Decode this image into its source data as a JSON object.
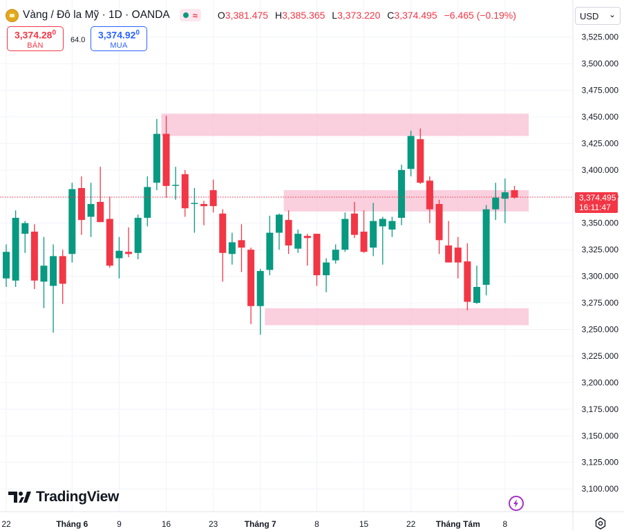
{
  "header": {
    "symbol_title": "Vàng / Đô la Mỹ · 1D · OANDA",
    "wave_icon_text": "≈",
    "ohlc": {
      "o_label": "O",
      "o_value": "3,381.475",
      "h_label": "H",
      "h_value": "3,385.365",
      "l_label": "L",
      "l_value": "3,373.220",
      "c_label": "C",
      "c_value": "3,374.495",
      "change": "−6.465 (−0.19%)"
    }
  },
  "trade": {
    "sell_price_main": "3,374.28",
    "sell_price_sup": "0",
    "sell_label": "BÁN",
    "spread": "64.0",
    "buy_price_main": "3,374.92",
    "buy_price_sup": "0",
    "buy_label": "MUA"
  },
  "currency": {
    "selected": "USD",
    "chevron": "⌄"
  },
  "last_price": {
    "price": "3,374.495",
    "countdown": "16:11:47"
  },
  "branding": {
    "logo_text": "TradingView"
  },
  "colors": {
    "up": "#089981",
    "down": "#f23645",
    "zone": "#f8bbd0",
    "grid": "#f0f3fa",
    "axis_text": "#131722"
  },
  "chart_data": {
    "type": "candlestick",
    "ylim": [
      3080,
      3540
    ],
    "y_ticks": [
      3100,
      3125,
      3150,
      3175,
      3200,
      3225,
      3250,
      3275,
      3300,
      3325,
      3350,
      3375,
      3400,
      3425,
      3450,
      3475,
      3500,
      3525
    ],
    "y_tick_labels": [
      "3,100.000",
      "3,125.000",
      "3,150.000",
      "3,175.000",
      "3,200.000",
      "3,225.000",
      "3,250.000",
      "3,275.000",
      "3,300.000",
      "3,325.000",
      "3,350.000",
      "3,375.000",
      "3,400.000",
      "3,425.000",
      "3,450.000",
      "3,475.000",
      "3,500.000",
      "3,525.000"
    ],
    "x_labels": [
      {
        "index": 0,
        "label": "22"
      },
      {
        "index": 7,
        "label": "Tháng 6"
      },
      {
        "index": 12,
        "label": "9"
      },
      {
        "index": 17,
        "label": "16"
      },
      {
        "index": 22,
        "label": "23"
      },
      {
        "index": 27,
        "label": "Tháng 7"
      },
      {
        "index": 33,
        "label": "8"
      },
      {
        "index": 38,
        "label": "15"
      },
      {
        "index": 43,
        "label": "22"
      },
      {
        "index": 48,
        "label": "Tháng Tám"
      },
      {
        "index": 53,
        "label": "8"
      }
    ],
    "candles": [
      {
        "o": 3298,
        "h": 3330,
        "l": 3290,
        "c": 3323
      },
      {
        "o": 3296,
        "h": 3362,
        "l": 3290,
        "c": 3355
      },
      {
        "o": 3340,
        "h": 3352,
        "l": 3322,
        "c": 3350
      },
      {
        "o": 3342,
        "h": 3349,
        "l": 3288,
        "c": 3296
      },
      {
        "o": 3295,
        "h": 3337,
        "l": 3270,
        "c": 3310
      },
      {
        "o": 3291,
        "h": 3330,
        "l": 3247,
        "c": 3319
      },
      {
        "o": 3319,
        "h": 3325,
        "l": 3274,
        "c": 3293
      },
      {
        "o": 3321,
        "h": 3388,
        "l": 3313,
        "c": 3382
      },
      {
        "o": 3383,
        "h": 3394,
        "l": 3339,
        "c": 3353
      },
      {
        "o": 3356,
        "h": 3388,
        "l": 3337,
        "c": 3368
      },
      {
        "o": 3370,
        "h": 3403,
        "l": 3351,
        "c": 3351
      },
      {
        "o": 3354,
        "h": 3375,
        "l": 3308,
        "c": 3310
      },
      {
        "o": 3317,
        "h": 3337,
        "l": 3298,
        "c": 3324
      },
      {
        "o": 3323,
        "h": 3346,
        "l": 3318,
        "c": 3321
      },
      {
        "o": 3322,
        "h": 3358,
        "l": 3316,
        "c": 3355
      },
      {
        "o": 3355,
        "h": 3394,
        "l": 3347,
        "c": 3384
      },
      {
        "o": 3388,
        "h": 3448,
        "l": 3381,
        "c": 3434
      },
      {
        "o": 3434,
        "h": 3451,
        "l": 3374,
        "c": 3385
      },
      {
        "o": 3386,
        "h": 3403,
        "l": 3372,
        "c": 3386
      },
      {
        "o": 3396,
        "h": 3400,
        "l": 3356,
        "c": 3364
      },
      {
        "o": 3368,
        "h": 3383,
        "l": 3341,
        "c": 3369
      },
      {
        "o": 3368,
        "h": 3371,
        "l": 3348,
        "c": 3366
      },
      {
        "o": 3381,
        "h": 3391,
        "l": 3360,
        "c": 3366
      },
      {
        "o": 3359,
        "h": 3363,
        "l": 3295,
        "c": 3322
      },
      {
        "o": 3321,
        "h": 3341,
        "l": 3311,
        "c": 3332
      },
      {
        "o": 3334,
        "h": 3349,
        "l": 3304,
        "c": 3327
      },
      {
        "o": 3325,
        "h": 3327,
        "l": 3255,
        "c": 3272
      },
      {
        "o": 3272,
        "h": 3307,
        "l": 3245,
        "c": 3305
      },
      {
        "o": 3306,
        "h": 3357,
        "l": 3301,
        "c": 3341
      },
      {
        "o": 3341,
        "h": 3359,
        "l": 3325,
        "c": 3358
      },
      {
        "o": 3353,
        "h": 3362,
        "l": 3321,
        "c": 3329
      },
      {
        "o": 3326,
        "h": 3344,
        "l": 3322,
        "c": 3340
      },
      {
        "o": 3338,
        "h": 3340,
        "l": 3310,
        "c": 3336
      },
      {
        "o": 3340,
        "h": 3340,
        "l": 3291,
        "c": 3301
      },
      {
        "o": 3301,
        "h": 3317,
        "l": 3285,
        "c": 3313
      },
      {
        "o": 3315,
        "h": 3330,
        "l": 3312,
        "c": 3325
      },
      {
        "o": 3325,
        "h": 3360,
        "l": 3323,
        "c": 3354
      },
      {
        "o": 3359,
        "h": 3370,
        "l": 3336,
        "c": 3339
      },
      {
        "o": 3342,
        "h": 3362,
        "l": 3322,
        "c": 3323
      },
      {
        "o": 3327,
        "h": 3369,
        "l": 3319,
        "c": 3352
      },
      {
        "o": 3347,
        "h": 3356,
        "l": 3311,
        "c": 3354
      },
      {
        "o": 3344,
        "h": 3356,
        "l": 3337,
        "c": 3352
      },
      {
        "o": 3355,
        "h": 3405,
        "l": 3348,
        "c": 3400
      },
      {
        "o": 3401,
        "h": 3437,
        "l": 3394,
        "c": 3432
      },
      {
        "o": 3429,
        "h": 3439,
        "l": 3387,
        "c": 3388
      },
      {
        "o": 3390,
        "h": 3394,
        "l": 3350,
        "c": 3363
      },
      {
        "o": 3368,
        "h": 3372,
        "l": 3321,
        "c": 3334
      },
      {
        "o": 3329,
        "h": 3352,
        "l": 3313,
        "c": 3313
      },
      {
        "o": 3327,
        "h": 3337,
        "l": 3298,
        "c": 3313
      },
      {
        "o": 3314,
        "h": 3331,
        "l": 3268,
        "c": 3276
      },
      {
        "o": 3275,
        "h": 3310,
        "l": 3274,
        "c": 3290
      },
      {
        "o": 3292,
        "h": 3367,
        "l": 3282,
        "c": 3363
      },
      {
        "o": 3363,
        "h": 3388,
        "l": 3353,
        "c": 3374
      },
      {
        "o": 3373,
        "h": 3392,
        "l": 3350,
        "c": 3379
      },
      {
        "o": 3381,
        "h": 3385,
        "l": 3373,
        "c": 3374
      }
    ],
    "zones": [
      {
        "from_index": 17,
        "to_index": 55,
        "low": 3432,
        "high": 3453
      },
      {
        "from_index": 30,
        "to_index": 55,
        "low": 3361,
        "high": 3381
      },
      {
        "from_index": 28,
        "to_index": 55,
        "low": 3254,
        "high": 3270
      }
    ],
    "last_price_line": 3374.495,
    "grid": true
  }
}
